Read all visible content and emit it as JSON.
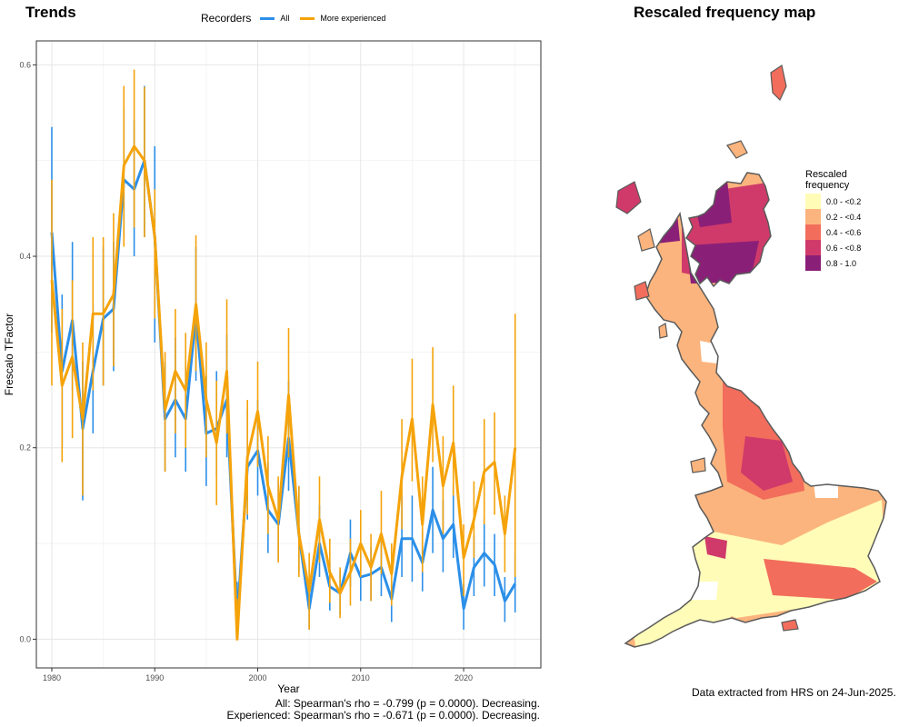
{
  "trends_title": "Trends",
  "map_title": "Rescaled frequency map",
  "legend": {
    "title": "Recorders",
    "items": [
      {
        "label": "All",
        "color": "#2b8fe8"
      },
      {
        "label": "More experienced",
        "color": "#f5a30a"
      }
    ]
  },
  "chart_data": {
    "type": "line",
    "xlabel": "Year",
    "ylabel": "Frescalo TFactor",
    "xlim": [
      1978.5,
      2027.5
    ],
    "ylim": [
      -0.03,
      0.625
    ],
    "x_ticks": [
      1980,
      1990,
      2000,
      2010,
      2020
    ],
    "y_ticks": [
      "0.0",
      "0.2",
      "0.4",
      "0.6"
    ],
    "x": [
      1980,
      1981,
      1982,
      1983,
      1984,
      1985,
      1986,
      1987,
      1988,
      1989,
      1990,
      1991,
      1992,
      1993,
      1994,
      1995,
      1996,
      1997,
      1998,
      1999,
      2000,
      2001,
      2002,
      2003,
      2004,
      2005,
      2006,
      2007,
      2008,
      2009,
      2010,
      2011,
      2012,
      2013,
      2014,
      2015,
      2016,
      2017,
      2018,
      2019,
      2020,
      2021,
      2022,
      2023,
      2024,
      2025
    ],
    "series": [
      {
        "name": "All",
        "color": "#2b8fe8",
        "values": [
          0.425,
          0.28,
          0.333,
          0.22,
          0.28,
          0.335,
          0.345,
          0.48,
          0.47,
          0.5,
          0.42,
          0.23,
          0.25,
          0.23,
          0.34,
          0.215,
          0.22,
          0.25,
          0.02,
          0.18,
          0.197,
          0.135,
          0.12,
          0.21,
          0.11,
          0.032,
          0.1,
          0.055,
          0.048,
          0.09,
          0.065,
          0.068,
          0.075,
          0.042,
          0.105,
          0.105,
          0.08,
          0.135,
          0.105,
          0.12,
          0.032,
          0.075,
          0.09,
          0.078,
          0.04,
          0.058
        ],
        "err_low": [
          0.32,
          0.2,
          0.26,
          0.145,
          0.215,
          0.265,
          0.28,
          0.42,
          0.4,
          0.42,
          0.31,
          0.175,
          0.19,
          0.175,
          0.27,
          0.16,
          0.17,
          0.19,
          0.0,
          0.125,
          0.15,
          0.09,
          0.082,
          0.155,
          0.07,
          0.01,
          0.065,
          0.03,
          0.025,
          0.055,
          0.04,
          0.04,
          0.045,
          0.018,
          0.065,
          0.06,
          0.05,
          0.09,
          0.07,
          0.085,
          0.01,
          0.045,
          0.055,
          0.045,
          0.018,
          0.028
        ],
        "err_high": [
          0.535,
          0.36,
          0.415,
          0.29,
          0.35,
          0.41,
          0.415,
          0.555,
          0.542,
          0.578,
          0.515,
          0.29,
          0.315,
          0.29,
          0.41,
          0.275,
          0.28,
          0.318,
          0.06,
          0.24,
          0.25,
          0.185,
          0.165,
          0.27,
          0.16,
          0.058,
          0.14,
          0.08,
          0.072,
          0.125,
          0.09,
          0.096,
          0.105,
          0.07,
          0.15,
          0.15,
          0.115,
          0.18,
          0.145,
          0.16,
          0.058,
          0.108,
          0.126,
          0.11,
          0.065,
          0.09
        ]
      },
      {
        "name": "More experienced",
        "color": "#f5a30a",
        "values": [
          0.375,
          0.265,
          0.295,
          0.23,
          0.34,
          0.34,
          0.36,
          0.495,
          0.515,
          0.5,
          0.42,
          0.24,
          0.28,
          0.26,
          0.35,
          0.25,
          0.205,
          0.28,
          0.0,
          0.19,
          0.238,
          0.16,
          0.125,
          0.255,
          0.11,
          0.05,
          0.125,
          0.07,
          0.048,
          0.07,
          0.1,
          0.075,
          0.11,
          0.068,
          0.17,
          0.23,
          0.12,
          0.245,
          0.16,
          0.205,
          0.085,
          0.125,
          0.175,
          0.185,
          0.11,
          0.2
        ],
        "err_low": [
          0.265,
          0.185,
          0.21,
          0.15,
          0.26,
          0.265,
          0.285,
          0.41,
          0.43,
          0.42,
          0.335,
          0.175,
          0.215,
          0.2,
          0.28,
          0.19,
          0.14,
          0.215,
          0.0,
          0.13,
          0.18,
          0.11,
          0.08,
          0.19,
          0.065,
          0.01,
          0.08,
          0.038,
          0.022,
          0.035,
          0.065,
          0.04,
          0.068,
          0.035,
          0.115,
          0.165,
          0.07,
          0.185,
          0.11,
          0.15,
          0.045,
          0.085,
          0.12,
          0.13,
          0.07,
          0.065
        ],
        "err_high": [
          0.48,
          0.345,
          0.375,
          0.31,
          0.42,
          0.42,
          0.445,
          0.578,
          0.595,
          0.577,
          0.47,
          0.3,
          0.345,
          0.32,
          0.422,
          0.31,
          0.27,
          0.355,
          0.042,
          0.25,
          0.29,
          0.212,
          0.17,
          0.325,
          0.16,
          0.09,
          0.17,
          0.105,
          0.075,
          0.105,
          0.135,
          0.11,
          0.155,
          0.1,
          0.23,
          0.293,
          0.17,
          0.305,
          0.212,
          0.265,
          0.12,
          0.165,
          0.23,
          0.237,
          0.15,
          0.34
        ]
      }
    ],
    "grid": true
  },
  "stats": {
    "all": "All: Spearman's rho = -0.799 (p = 0.0000). Decreasing.",
    "experienced": "Experienced: Spearman's rho = -0.671 (p = 0.0000). Decreasing."
  },
  "map_legend": {
    "title_line1": "Rescaled",
    "title_line2": "frequency",
    "items": [
      {
        "label": "0.0 - <0.2",
        "color": "#fffcb8"
      },
      {
        "label": "0.2 - <0.4",
        "color": "#fbb47d"
      },
      {
        "label": "0.4 - <0.6",
        "color": "#f26d5c"
      },
      {
        "label": "0.6 - <0.8",
        "color": "#d03a6a"
      },
      {
        "label": "0.8 - 1.0",
        "color": "#8a1f78"
      }
    ]
  },
  "data_note": "Data extracted from HRS on 24-Jun-2025."
}
